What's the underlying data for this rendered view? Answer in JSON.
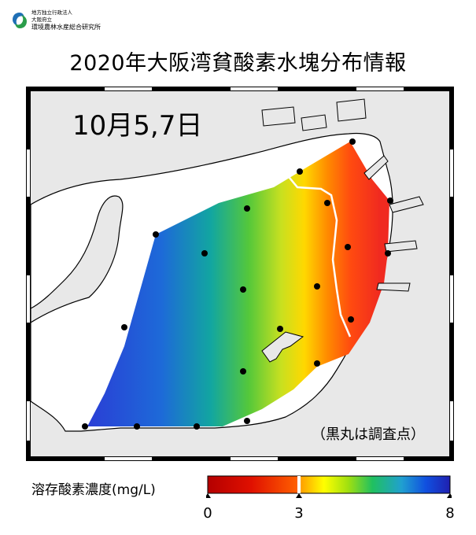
{
  "logo": {
    "line1": "地方独立行政法人",
    "line2": "大阪府立",
    "line3": "環境農林水産総合研究所"
  },
  "title": "2020年大阪湾貧酸素水塊分布情報",
  "map": {
    "date_label": "10月5,7日",
    "station_note": "（黒丸は調査点）",
    "station_marker": "black-dot",
    "outline_color": "#000000",
    "land_color": "#e8e8e8",
    "sea_color": "#ffffff",
    "boundary_line": {
      "value": 3,
      "color": "#ffffff"
    }
  },
  "legend": {
    "title": "溶存酸素濃度(mg/L)",
    "ticks": [
      "0",
      "3",
      "8"
    ],
    "min": 0,
    "max": 8,
    "colors": [
      "#b40000",
      "#ff3000",
      "#ff9a00",
      "#ffff00",
      "#a0e010",
      "#20c060",
      "#20a0d0",
      "#1050e0",
      "#2020b0"
    ]
  }
}
